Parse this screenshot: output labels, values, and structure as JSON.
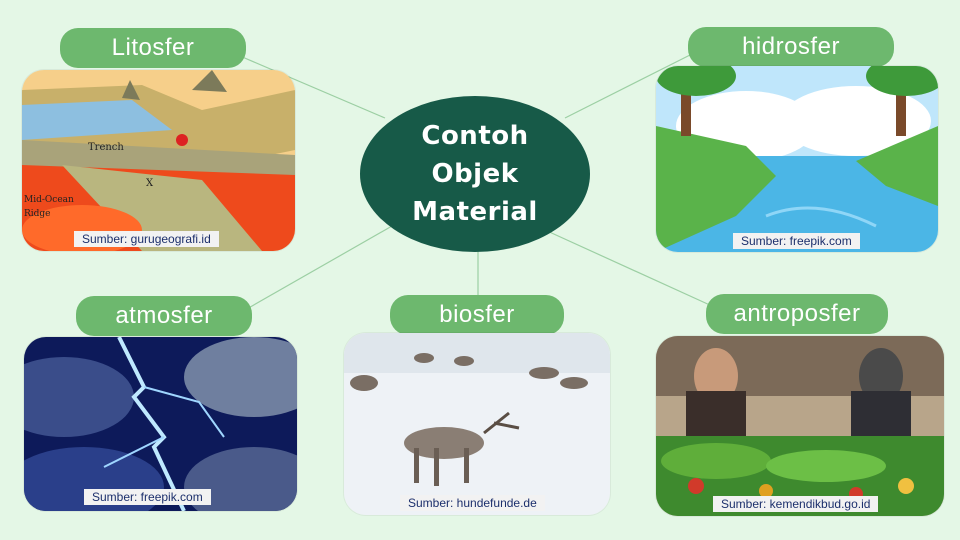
{
  "center": {
    "line1": "Contoh Objek",
    "line2": "Material"
  },
  "nodes": [
    {
      "label": "Litosfer",
      "source": "Sumber: gurugeografi.id",
      "image_labels": [
        "Trench",
        "X",
        "Mid-Ocean",
        "Ridge"
      ]
    },
    {
      "label": "hidrosfer",
      "source": "Sumber: freepik.com"
    },
    {
      "label": "atmosfer",
      "source": "Sumber: freepik.com"
    },
    {
      "label": "biosfer",
      "source": "Sumber: hundefunde.de"
    },
    {
      "label": "antroposfer",
      "source": "Sumber: kemendikbud.go.id"
    }
  ],
  "colors": {
    "background": "#e4f7e6",
    "center": "#175a48",
    "pill": "#6db86e",
    "link": "#8fcf9a"
  }
}
